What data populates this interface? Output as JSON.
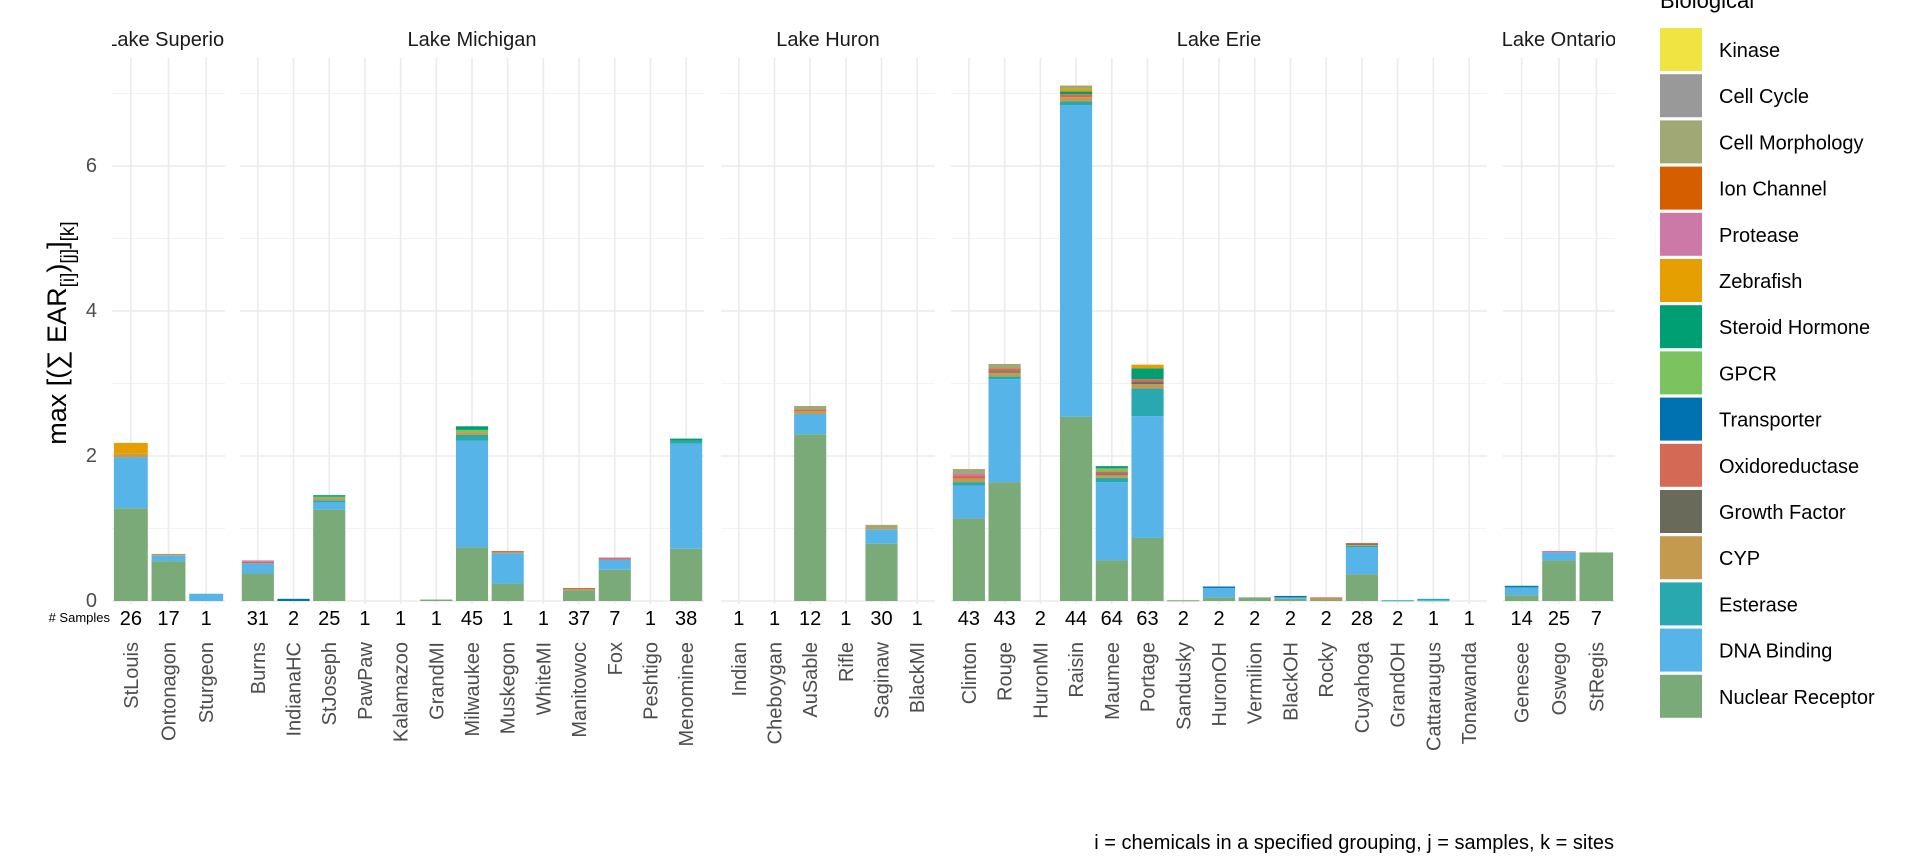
{
  "chart_data": {
    "type": "bar",
    "stacked": true,
    "ylabel_parts": {
      "prefix": "max [(",
      "sum": "∑",
      "ear": "EAR",
      "sub1": "[i]",
      "close": ")",
      "sub2": "[j]",
      "close2": "]",
      "sub3": "[k]"
    },
    "y_ticks": [
      "0",
      "2",
      "4",
      "6"
    ],
    "ylim": [
      0,
      7.4
    ],
    "grid": true,
    "samples_label": "# Samples",
    "caption": "i = chemicals in a specified grouping, j = samples, k = sites",
    "legend_title": "Biological",
    "legend_position": "right",
    "categories": [
      {
        "name": "Kinase",
        "color": "#F0E442"
      },
      {
        "name": "Cell Cycle",
        "color": "#999999"
      },
      {
        "name": "Cell Morphology",
        "color": "#A0A876"
      },
      {
        "name": "Ion Channel",
        "color": "#D55E00"
      },
      {
        "name": "Protease",
        "color": "#CC79A7"
      },
      {
        "name": "Zebrafish",
        "color": "#E69F00"
      },
      {
        "name": "Steroid Hormone",
        "color": "#009E73"
      },
      {
        "name": "GPCR",
        "color": "#7CC25E"
      },
      {
        "name": "Transporter",
        "color": "#0072B2"
      },
      {
        "name": "Oxidoreductase",
        "color": "#D46A55"
      },
      {
        "name": "Growth Factor",
        "color": "#6A6A5A"
      },
      {
        "name": "CYP",
        "color": "#C49A4E"
      },
      {
        "name": "Esterase",
        "color": "#2AA8B0"
      },
      {
        "name": "DNA Binding",
        "color": "#56B4E9"
      },
      {
        "name": "Nuclear Receptor",
        "color": "#7AAA78"
      }
    ],
    "panels": [
      {
        "title": "Lake Superior",
        "sites": [
          {
            "name": "StLouis",
            "samples": "26",
            "stack": {
              "Nuclear Receptor": 1.28,
              "DNA Binding": 0.7,
              "CYP": 0.05,
              "Zebrafish": 0.15
            }
          },
          {
            "name": "Ontonagon",
            "samples": "17",
            "stack": {
              "Nuclear Receptor": 0.55,
              "DNA Binding": 0.08,
              "CYP": 0.02
            }
          },
          {
            "name": "Sturgeon",
            "samples": "1",
            "stack": {
              "DNA Binding": 0.1
            }
          }
        ]
      },
      {
        "title": "Lake Michigan",
        "sites": [
          {
            "name": "Burns",
            "samples": "31",
            "stack": {
              "Nuclear Receptor": 0.38,
              "DNA Binding": 0.14,
              "Oxidoreductase": 0.02,
              "Protease": 0.02
            }
          },
          {
            "name": "IndianaHC",
            "samples": "2",
            "stack": {
              "Transporter": 0.03
            }
          },
          {
            "name": "StJoseph",
            "samples": "25",
            "stack": {
              "Nuclear Receptor": 1.26,
              "DNA Binding": 0.1,
              "Esterase": 0.03,
              "CYP": 0.03,
              "GPCR": 0.02,
              "Steroid Hormone": 0.02
            }
          },
          {
            "name": "PawPaw",
            "samples": "1",
            "stack": {}
          },
          {
            "name": "Kalamazoo",
            "samples": "1",
            "stack": {}
          },
          {
            "name": "GrandMI",
            "samples": "1",
            "stack": {
              "Nuclear Receptor": 0.02
            }
          },
          {
            "name": "Milwaukee",
            "samples": "45",
            "stack": {
              "Nuclear Receptor": 0.74,
              "DNA Binding": 1.47,
              "Esterase": 0.08,
              "CYP": 0.04,
              "GPCR": 0.03,
              "Steroid Hormone": 0.05
            }
          },
          {
            "name": "Muskegon",
            "samples": "1",
            "stack": {
              "Nuclear Receptor": 0.24,
              "DNA Binding": 0.42,
              "CYP": 0.02,
              "Oxidoreductase": 0.01
            }
          },
          {
            "name": "WhiteMI",
            "samples": "1",
            "stack": {}
          },
          {
            "name": "Manitowoc",
            "samples": "37",
            "stack": {
              "Nuclear Receptor": 0.15,
              "CYP": 0.02,
              "Oxidoreductase": 0.01
            }
          },
          {
            "name": "Fox",
            "samples": "7",
            "stack": {
              "Nuclear Receptor": 0.43,
              "DNA Binding": 0.14,
              "Oxidoreductase": 0.02,
              "Protease": 0.01
            }
          },
          {
            "name": "Peshtigo",
            "samples": "1",
            "stack": {}
          },
          {
            "name": "Menominee",
            "samples": "38",
            "stack": {
              "Nuclear Receptor": 0.72,
              "DNA Binding": 1.45,
              "Esterase": 0.04,
              "Steroid Hormone": 0.03
            }
          }
        ]
      },
      {
        "title": "Lake Huron",
        "sites": [
          {
            "name": "Indian",
            "samples": "1",
            "stack": {}
          },
          {
            "name": "Cheboygan",
            "samples": "1",
            "stack": {}
          },
          {
            "name": "AuSable",
            "samples": "12",
            "stack": {
              "Nuclear Receptor": 2.3,
              "DNA Binding": 0.28,
              "Cell Morphology": 0.05,
              "CYP": 0.04,
              "Oxidoreductase": 0.02
            }
          },
          {
            "name": "Rifle",
            "samples": "1",
            "stack": {}
          },
          {
            "name": "Saginaw",
            "samples": "30",
            "stack": {
              "Nuclear Receptor": 0.79,
              "DNA Binding": 0.2,
              "Cell Morphology": 0.03,
              "CYP": 0.03
            }
          },
          {
            "name": "BlackMI",
            "samples": "1",
            "stack": {}
          }
        ]
      },
      {
        "title": "Lake Erie",
        "sites": [
          {
            "name": "Clinton",
            "samples": "43",
            "stack": {
              "Nuclear Receptor": 1.14,
              "DNA Binding": 0.45,
              "Esterase": 0.05,
              "CYP": 0.05,
              "Oxidoreductase": 0.04,
              "Protease": 0.03,
              "Cell Morphology": 0.06
            }
          },
          {
            "name": "Rouge",
            "samples": "43",
            "stack": {
              "Nuclear Receptor": 1.64,
              "DNA Binding": 1.42,
              "Esterase": 0.04,
              "CYP": 0.05,
              "Oxidoreductase": 0.04,
              "Growth Factor": 0.02,
              "Cell Morphology": 0.06
            }
          },
          {
            "name": "HuronMI",
            "samples": "2",
            "stack": {}
          },
          {
            "name": "Raisin",
            "samples": "44",
            "stack": {
              "Nuclear Receptor": 2.54,
              "DNA Binding": 4.3,
              "Esterase": 0.05,
              "CYP": 0.06,
              "Oxidoreductase": 0.04,
              "Zebrafish": 0.04,
              "Steroid Hormone": 0.04,
              "Cell Morphology": 0.04
            }
          },
          {
            "name": "Maumee",
            "samples": "64",
            "stack": {
              "Nuclear Receptor": 0.56,
              "DNA Binding": 1.08,
              "Esterase": 0.06,
              "CYP": 0.04,
              "GPCR": 0.04,
              "Oxidoreductase": 0.03,
              "Growth Factor": 0.02,
              "Steroid Hormone": 0.03
            }
          },
          {
            "name": "Portage",
            "samples": "63",
            "stack": {
              "Nuclear Receptor": 0.87,
              "DNA Binding": 1.68,
              "Esterase": 0.38,
              "CYP": 0.06,
              "Oxidoreductase": 0.04,
              "Zebrafish": 0.05,
              "Growth Factor": 0.03,
              "Steroid Hormone": 0.15
            }
          },
          {
            "name": "Sandusky",
            "samples": "2",
            "stack": {
              "Nuclear Receptor": 0.01
            }
          },
          {
            "name": "HuronOH",
            "samples": "2",
            "stack": {
              "Nuclear Receptor": 0.05,
              "DNA Binding": 0.13,
              "Transporter": 0.02
            }
          },
          {
            "name": "Vermilion",
            "samples": "2",
            "stack": {
              "Nuclear Receptor": 0.05
            }
          },
          {
            "name": "BlackOH",
            "samples": "2",
            "stack": {
              "Nuclear Receptor": 0.03,
              "DNA Binding": 0.02,
              "Transporter": 0.02
            }
          },
          {
            "name": "Rocky",
            "samples": "2",
            "stack": {
              "Nuclear Receptor": 0.02,
              "CYP": 0.02,
              "Oxidoreductase": 0.01
            }
          },
          {
            "name": "Cuyahoga",
            "samples": "28",
            "stack": {
              "Nuclear Receptor": 0.37,
              "DNA Binding": 0.37,
              "Esterase": 0.02,
              "CYP": 0.02,
              "Growth Factor": 0.01,
              "Oxidoreductase": 0.01
            }
          },
          {
            "name": "GrandOH",
            "samples": "2",
            "stack": {
              "Esterase": 0.01
            }
          },
          {
            "name": "Cattaraugus",
            "samples": "1",
            "stack": {
              "Esterase": 0.02,
              "DNA Binding": 0.01
            }
          },
          {
            "name": "Tonawanda",
            "samples": "1",
            "stack": {}
          }
        ]
      },
      {
        "title": "Lake Ontario",
        "sites": [
          {
            "name": "Genesee",
            "samples": "14",
            "stack": {
              "Nuclear Receptor": 0.08,
              "DNA Binding": 0.1,
              "Esterase": 0.02,
              "Transporter": 0.01
            }
          },
          {
            "name": "Oswego",
            "samples": "25",
            "stack": {
              "Nuclear Receptor": 0.56,
              "DNA Binding": 0.11,
              "Protease": 0.02
            }
          },
          {
            "name": "StRegis",
            "samples": "7",
            "stack": {
              "Nuclear Receptor": 0.67
            }
          }
        ]
      }
    ]
  }
}
